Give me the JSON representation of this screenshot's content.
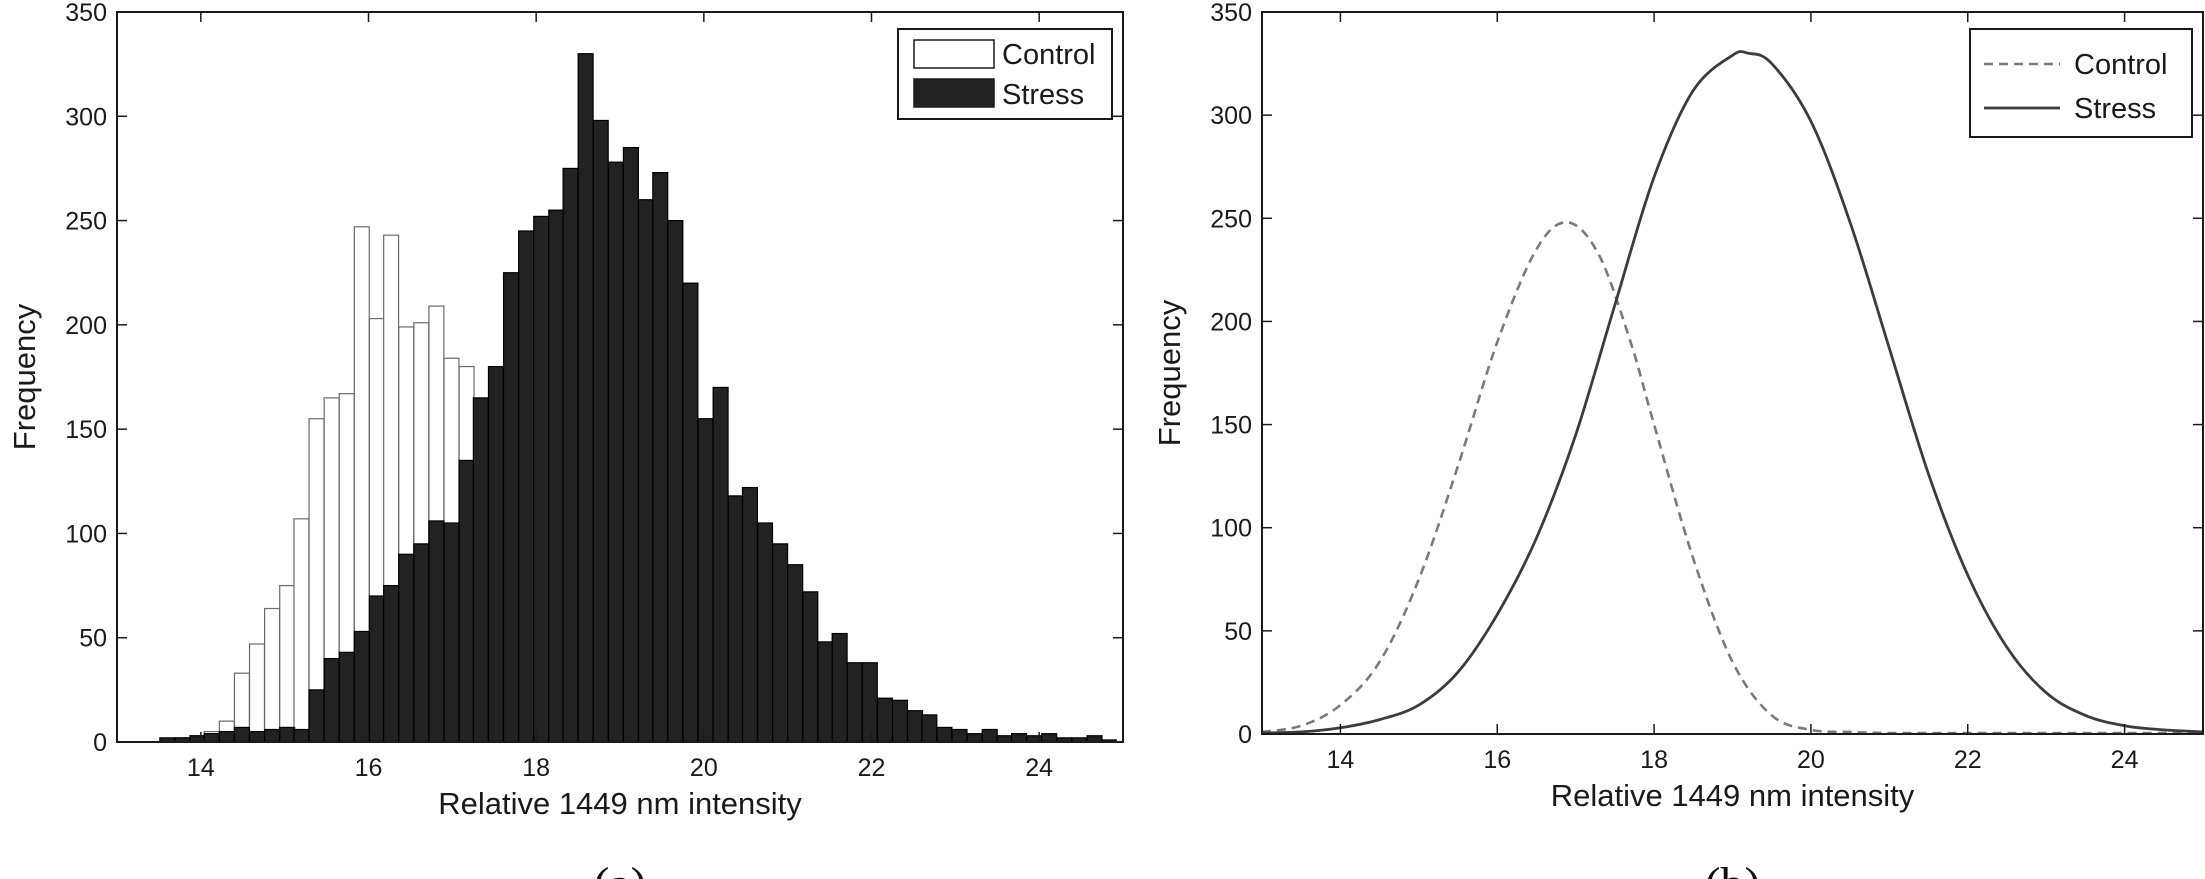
{
  "chart_data": [
    {
      "type": "bar",
      "panel_label": "(a)",
      "xlabel": "Relative 1449 nm intensity",
      "ylabel": "Frequency",
      "xlim": [
        13,
        25
      ],
      "ylim": [
        0,
        350
      ],
      "xticks": [
        "14",
        "16",
        "18",
        "20",
        "22",
        "24"
      ],
      "yticks": [
        "0",
        "50",
        "100",
        "150",
        "200",
        "250",
        "300",
        "350"
      ],
      "bin_width": 0.178,
      "legend_position": "top-right",
      "series": [
        {
          "name": "Control",
          "color": "#ffffff",
          "x": [
            13.6,
            13.78,
            13.96,
            14.13,
            14.31,
            14.49,
            14.67,
            14.85,
            15.03,
            15.2,
            15.38,
            15.56,
            15.74,
            15.92,
            16.1,
            16.27,
            16.45,
            16.63,
            16.81,
            16.99,
            17.17,
            17.34,
            17.52,
            17.7
          ],
          "values": [
            1,
            2,
            3,
            5,
            10,
            33,
            47,
            64,
            75,
            107,
            155,
            165,
            167,
            247,
            203,
            243,
            199,
            201,
            209,
            184,
            180,
            100,
            50,
            20
          ]
        },
        {
          "name": "Stress",
          "color": "#222222",
          "x": [
            13.6,
            13.78,
            13.96,
            14.13,
            14.31,
            14.49,
            14.67,
            14.85,
            15.03,
            15.2,
            15.38,
            15.56,
            15.74,
            15.92,
            16.1,
            16.27,
            16.45,
            16.63,
            16.81,
            16.99,
            17.17,
            17.34,
            17.52,
            17.7,
            17.88,
            18.06,
            18.24,
            18.41,
            18.59,
            18.77,
            18.95,
            19.13,
            19.31,
            19.48,
            19.66,
            19.84,
            20.02,
            20.2,
            20.38,
            20.55,
            20.73,
            20.91,
            21.09,
            21.27,
            21.45,
            21.62,
            21.8,
            21.98,
            22.16,
            22.34,
            22.52,
            22.69,
            22.87,
            23.05,
            23.23,
            23.41,
            23.59,
            23.76,
            23.94,
            24.12,
            24.3,
            24.48,
            24.66,
            24.83
          ],
          "values": [
            2,
            2,
            3,
            4,
            5,
            7,
            5,
            6,
            7,
            6,
            25,
            40,
            43,
            53,
            70,
            75,
            90,
            95,
            106,
            105,
            135,
            165,
            180,
            225,
            245,
            252,
            255,
            275,
            330,
            298,
            278,
            285,
            260,
            273,
            250,
            220,
            155,
            170,
            118,
            122,
            105,
            95,
            85,
            72,
            48,
            52,
            38,
            38,
            21,
            20,
            15,
            13,
            7,
            6,
            4,
            6,
            3,
            4,
            3,
            4,
            2,
            2,
            3,
            1
          ]
        }
      ]
    },
    {
      "type": "line",
      "panel_label": "(b)",
      "xlabel": "Relative 1449 nm intensity",
      "ylabel": "Frequency",
      "xlim": [
        13,
        25
      ],
      "ylim": [
        0,
        350
      ],
      "xticks": [
        "14",
        "16",
        "18",
        "20",
        "22",
        "24"
      ],
      "yticks": [
        "0",
        "50",
        "100",
        "150",
        "200",
        "250",
        "300",
        "350"
      ],
      "legend_position": "top-right",
      "series": [
        {
          "name": "Control",
          "style": "dashed",
          "color": "#7a7a7a",
          "x": [
            13,
            13.5,
            14,
            14.5,
            15,
            15.5,
            16,
            16.5,
            16.9,
            17.3,
            17.7,
            18,
            18.5,
            19,
            19.5,
            20,
            20.5,
            21,
            22,
            23,
            24,
            25
          ],
          "values": [
            1,
            4,
            14,
            35,
            75,
            130,
            190,
            235,
            248,
            232,
            190,
            150,
            85,
            35,
            9,
            2,
            1,
            0,
            0,
            0,
            0,
            0
          ]
        },
        {
          "name": "Stress",
          "style": "solid",
          "color": "#3c3c3c",
          "x": [
            13,
            13.5,
            14,
            14.5,
            15,
            15.5,
            16,
            16.5,
            17,
            17.5,
            18,
            18.5,
            19,
            19.2,
            19.5,
            20,
            20.5,
            21,
            21.5,
            22,
            22.5,
            23,
            23.5,
            24,
            24.5,
            25
          ],
          "values": [
            0,
            1,
            3,
            7,
            14,
            30,
            58,
            95,
            145,
            208,
            270,
            312,
            329,
            330,
            325,
            297,
            248,
            187,
            126,
            77,
            42,
            20,
            9,
            4,
            2,
            1
          ]
        }
      ]
    }
  ]
}
